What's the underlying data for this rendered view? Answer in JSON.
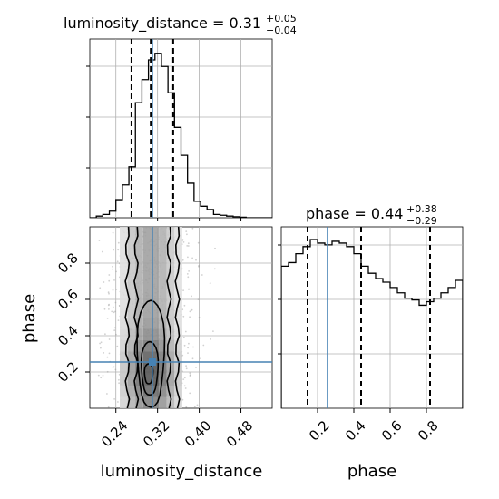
{
  "chart_data": {
    "type": "corner",
    "params": [
      {
        "name": "luminosity_distance",
        "title_prefix": "luminosity_distance = ",
        "median": "0.31",
        "plus": "+0.05",
        "minus": "−0.04",
        "range": [
          0.19,
          0.54
        ],
        "ticks": [
          0.24,
          0.32,
          0.4,
          0.48
        ],
        "tick_labels": [
          "0.24",
          "0.32",
          "0.40",
          "0.48"
        ],
        "quantiles": [
          0.27,
          0.307,
          0.35
        ],
        "truth": 0.31,
        "hist": {
          "bin_edges": [
            0.19,
            0.2025,
            0.215,
            0.2275,
            0.24,
            0.2525,
            0.265,
            0.2775,
            0.29,
            0.3025,
            0.315,
            0.3275,
            0.34,
            0.3525,
            0.365,
            0.3775,
            0.39,
            0.4025,
            0.415,
            0.4275,
            0.44,
            0.4525,
            0.465,
            0.4775,
            0.49,
            0.5025,
            0.515,
            0.5275,
            0.54
          ],
          "counts": [
            0,
            0.01,
            0.02,
            0.04,
            0.11,
            0.2,
            0.31,
            0.7,
            0.84,
            0.96,
            1.0,
            0.92,
            0.76,
            0.55,
            0.38,
            0.21,
            0.1,
            0.07,
            0.05,
            0.02,
            0.015,
            0.01,
            0.006,
            0.003,
            0,
            0,
            0,
            0
          ]
        }
      },
      {
        "name": "phase",
        "title_prefix": "phase = ",
        "median": "0.44",
        "plus": "+0.38",
        "minus": "−0.29",
        "range": [
          0.0,
          1.0
        ],
        "ticks": [
          0.2,
          0.4,
          0.6,
          0.8
        ],
        "tick_labels": [
          "0.2",
          "0.4",
          "0.6",
          "0.8"
        ],
        "quantiles": [
          0.145,
          0.44,
          0.82
        ],
        "truth": 0.255,
        "hist": {
          "bin_edges": [
            0.0,
            0.04,
            0.08,
            0.12,
            0.16,
            0.2,
            0.24,
            0.28,
            0.32,
            0.36,
            0.4,
            0.44,
            0.48,
            0.52,
            0.56,
            0.6,
            0.64,
            0.68,
            0.72,
            0.76,
            0.8,
            0.84,
            0.88,
            0.92,
            0.96,
            1.0
          ],
          "counts": [
            0.8,
            0.82,
            0.87,
            0.91,
            0.95,
            0.93,
            0.92,
            0.94,
            0.93,
            0.91,
            0.87,
            0.8,
            0.76,
            0.73,
            0.71,
            0.68,
            0.65,
            0.62,
            0.61,
            0.58,
            0.6,
            0.62,
            0.65,
            0.68,
            0.72
          ]
        }
      }
    ],
    "ylabel_2d": "phase",
    "xlabel_left": "luminosity_distance",
    "xlabel_right": "phase",
    "truth_color": "#4682b4",
    "grid": true
  }
}
